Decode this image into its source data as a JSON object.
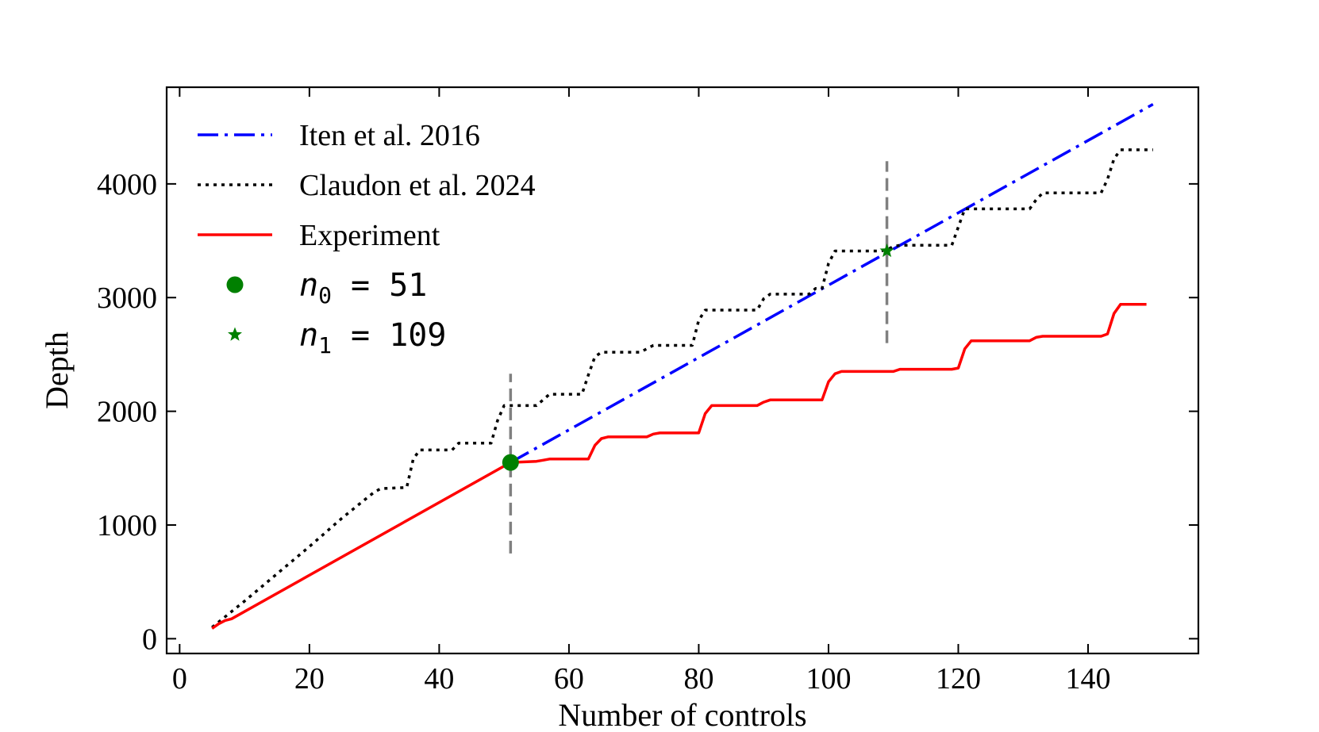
{
  "chart_data": {
    "type": "line",
    "title": "",
    "xlabel": "Number of controls",
    "ylabel": "Depth",
    "xlim": [
      -2,
      157
    ],
    "ylim": [
      -130,
      4850
    ],
    "xticks": [
      0,
      20,
      40,
      60,
      80,
      100,
      120,
      140
    ],
    "yticks": [
      0,
      1000,
      2000,
      3000,
      4000
    ],
    "grid": false,
    "legend_position": "top-left",
    "colors": {
      "iten": "#0000ff",
      "claudon": "#000000",
      "experiment": "#ff0000",
      "markers": "#008000",
      "vline": "#808080"
    },
    "series": [
      {
        "name": "Iten et al. 2016",
        "style": "dash-dot",
        "x": [
          51,
          150
        ],
        "y": [
          1550,
          4700
        ]
      },
      {
        "name": "Claudon et al. 2024",
        "style": "dotted",
        "x": [
          5,
          10,
          15,
          20,
          25,
          30,
          31,
          35,
          36,
          37,
          42,
          43,
          48,
          49,
          50,
          55,
          56,
          57,
          62,
          63,
          64,
          65,
          71,
          72,
          73,
          79,
          80,
          81,
          82,
          89,
          90,
          91,
          97,
          98,
          99,
          100,
          101,
          108,
          109,
          110,
          111,
          119,
          120,
          121,
          122,
          131,
          132,
          133,
          142,
          143,
          144,
          145,
          150
        ],
        "y": [
          100,
          330,
          570,
          810,
          1060,
          1290,
          1320,
          1330,
          1580,
          1660,
          1660,
          1720,
          1720,
          1920,
          2050,
          2050,
          2100,
          2150,
          2150,
          2320,
          2480,
          2520,
          2520,
          2550,
          2580,
          2580,
          2800,
          2890,
          2890,
          2890,
          2990,
          3030,
          3030,
          3080,
          3080,
          3300,
          3410,
          3410,
          3420,
          3450,
          3460,
          3460,
          3620,
          3780,
          3780,
          3780,
          3860,
          3920,
          3920,
          4040,
          4220,
          4300,
          4300
        ]
      },
      {
        "name": "Experiment",
        "style": "solid",
        "x": [
          5,
          6,
          7,
          8,
          51,
          55,
          56,
          57,
          63,
          64,
          65,
          66,
          72,
          73,
          74,
          80,
          81,
          82,
          83,
          89,
          90,
          91,
          99,
          100,
          101,
          102,
          110,
          111,
          119,
          120,
          121,
          122,
          123,
          131,
          132,
          133,
          142,
          143,
          144,
          145,
          149
        ],
        "y": [
          90,
          130,
          160,
          175,
          1550,
          1560,
          1570,
          1580,
          1580,
          1700,
          1760,
          1775,
          1775,
          1800,
          1810,
          1810,
          1980,
          2050,
          2050,
          2050,
          2080,
          2100,
          2100,
          2260,
          2330,
          2350,
          2350,
          2370,
          2370,
          2380,
          2550,
          2620,
          2620,
          2620,
          2650,
          2660,
          2660,
          2680,
          2860,
          2940,
          2940
        ]
      }
    ],
    "markers": [
      {
        "label": "n₀ = 51",
        "x": 51,
        "y": 1550,
        "shape": "circle"
      },
      {
        "label": "n₁ = 109",
        "x": 109,
        "y": 3410,
        "shape": "star"
      }
    ],
    "vlines": [
      {
        "x": 51,
        "ymin": 750,
        "ymax": 2330
      },
      {
        "x": 109,
        "ymin": 2600,
        "ymax": 4200
      }
    ],
    "legend": [
      {
        "label": "Iten et al. 2016",
        "kind": "line",
        "style": "dash-dot"
      },
      {
        "label": "Claudon et al. 2024",
        "kind": "line",
        "style": "dotted"
      },
      {
        "label": "Experiment",
        "kind": "line",
        "style": "solid"
      },
      {
        "label_var": "n",
        "label_sub": "0",
        "label_rest": " = 51",
        "kind": "marker",
        "shape": "circle"
      },
      {
        "label_var": "n",
        "label_sub": "1",
        "label_rest": " = 109",
        "kind": "marker",
        "shape": "star"
      }
    ]
  }
}
